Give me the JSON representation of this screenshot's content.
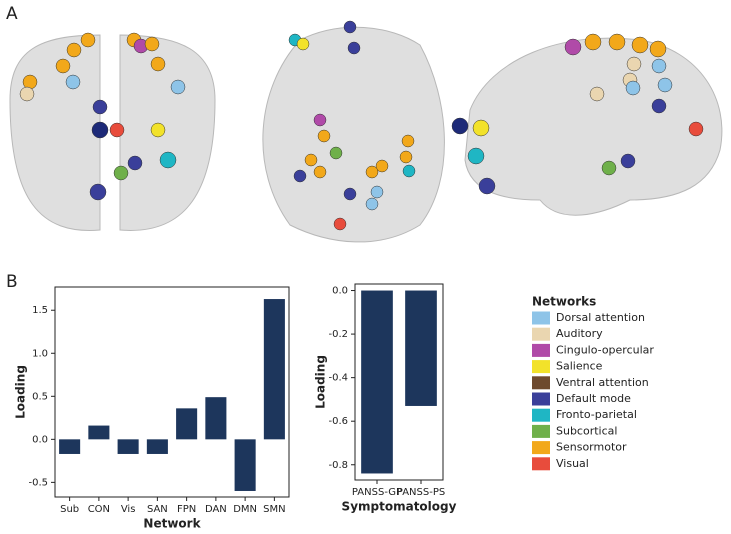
{
  "panel_labels": [
    "A",
    "B"
  ],
  "chart_data": [
    {
      "type": "bar",
      "y_label": "Loading",
      "x_label": "Network",
      "categories": [
        "Sub",
        "CON",
        "Vis",
        "SAN",
        "FPN",
        "DAN",
        "DMN",
        "SMN"
      ],
      "values": [
        -0.17,
        0.16,
        -0.17,
        -0.17,
        0.36,
        0.49,
        -0.6,
        1.63
      ],
      "color": "#1d365c",
      "ylim": [
        -0.67,
        1.77
      ],
      "yticks": [
        -0.5,
        {
          "value": 0,
          "label": "0.0"
        },
        0.5,
        {
          "value": 1,
          "label": "1.0"
        },
        1.5
      ]
    },
    {
      "type": "bar",
      "y_label": "Loading",
      "x_label": "Symptomatology",
      "categories": [
        "PANSS-GP",
        "PANSS-PS"
      ],
      "values": [
        -0.84,
        -0.53
      ],
      "color": "#1d365c",
      "ylim": [
        -0.87,
        0.03
      ],
      "yticks": [
        -0.8,
        -0.6,
        -0.4,
        -0.2,
        {
          "value": 0,
          "label": "0.0"
        }
      ]
    }
  ],
  "legend": {
    "title": "Networks",
    "items": [
      {
        "name": "Dorsal attention",
        "color": "#8ec4e8"
      },
      {
        "name": "Auditory",
        "color": "#ead6b0"
      },
      {
        "name": "Cingulo-opercular",
        "color": "#b04aa8"
      },
      {
        "name": "Salience",
        "color": "#f2e22a"
      },
      {
        "name": "Ventral attention",
        "color": "#6e4a2e"
      },
      {
        "name": "Default mode",
        "color": "#3a3f9a"
      },
      {
        "name": "Fronto-parietal",
        "color": "#1fb6c4"
      },
      {
        "name": "Subcortical",
        "color": "#6fb04a"
      },
      {
        "name": "Sensormotor",
        "color": "#f2a81a"
      },
      {
        "name": "Visual",
        "color": "#e84c3c"
      }
    ]
  }
}
